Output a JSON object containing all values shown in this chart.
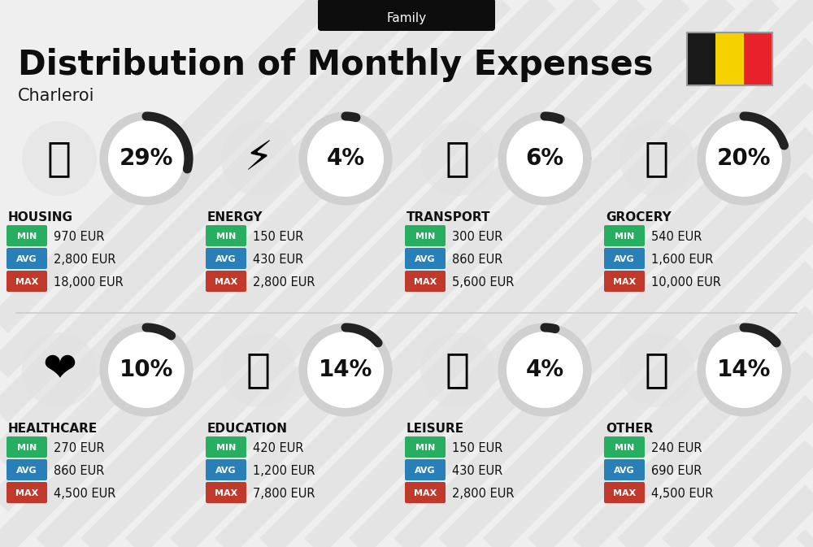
{
  "title": "Distribution of Monthly Expenses",
  "subtitle": "Charleroi",
  "category_label": "Family",
  "bg_color": "#efefef",
  "categories": [
    {
      "name": "HOUSING",
      "pct": 29,
      "min": "970 EUR",
      "avg": "2,800 EUR",
      "max": "18,000 EUR",
      "icon": "🏙",
      "row": 0,
      "col": 0
    },
    {
      "name": "ENERGY",
      "pct": 4,
      "min": "150 EUR",
      "avg": "430 EUR",
      "max": "2,800 EUR",
      "icon": "⚡",
      "row": 0,
      "col": 1
    },
    {
      "name": "TRANSPORT",
      "pct": 6,
      "min": "300 EUR",
      "avg": "860 EUR",
      "max": "5,600 EUR",
      "icon": "🚌",
      "row": 0,
      "col": 2
    },
    {
      "name": "GROCERY",
      "pct": 20,
      "min": "540 EUR",
      "avg": "1,600 EUR",
      "max": "10,000 EUR",
      "icon": "🛒",
      "row": 0,
      "col": 3
    },
    {
      "name": "HEALTHCARE",
      "pct": 10,
      "min": "270 EUR",
      "avg": "860 EUR",
      "max": "4,500 EUR",
      "icon": "❤",
      "row": 1,
      "col": 0
    },
    {
      "name": "EDUCATION",
      "pct": 14,
      "min": "420 EUR",
      "avg": "1,200 EUR",
      "max": "7,800 EUR",
      "icon": "🎓",
      "row": 1,
      "col": 1
    },
    {
      "name": "LEISURE",
      "pct": 4,
      "min": "150 EUR",
      "avg": "430 EUR",
      "max": "2,800 EUR",
      "icon": "🛍",
      "row": 1,
      "col": 2
    },
    {
      "name": "OTHER",
      "pct": 14,
      "min": "240 EUR",
      "avg": "690 EUR",
      "max": "4,500 EUR",
      "icon": "💰",
      "row": 1,
      "col": 3
    }
  ],
  "min_color": "#27ae60",
  "avg_color": "#2980b9",
  "max_color": "#c0392b",
  "arc_dark": "#222222",
  "arc_light": "#d0d0d0",
  "title_fontsize": 30,
  "subtitle_fontsize": 15,
  "cat_name_fontsize": 11,
  "pct_fontsize": 20,
  "value_fontsize": 10.5,
  "badge_fontsize": 8,
  "flag_colors": [
    "#1a1a1a",
    "#f5d100",
    "#e8212b"
  ],
  "stripe_color": "#e4e4e4",
  "divider_color": "#cccccc"
}
